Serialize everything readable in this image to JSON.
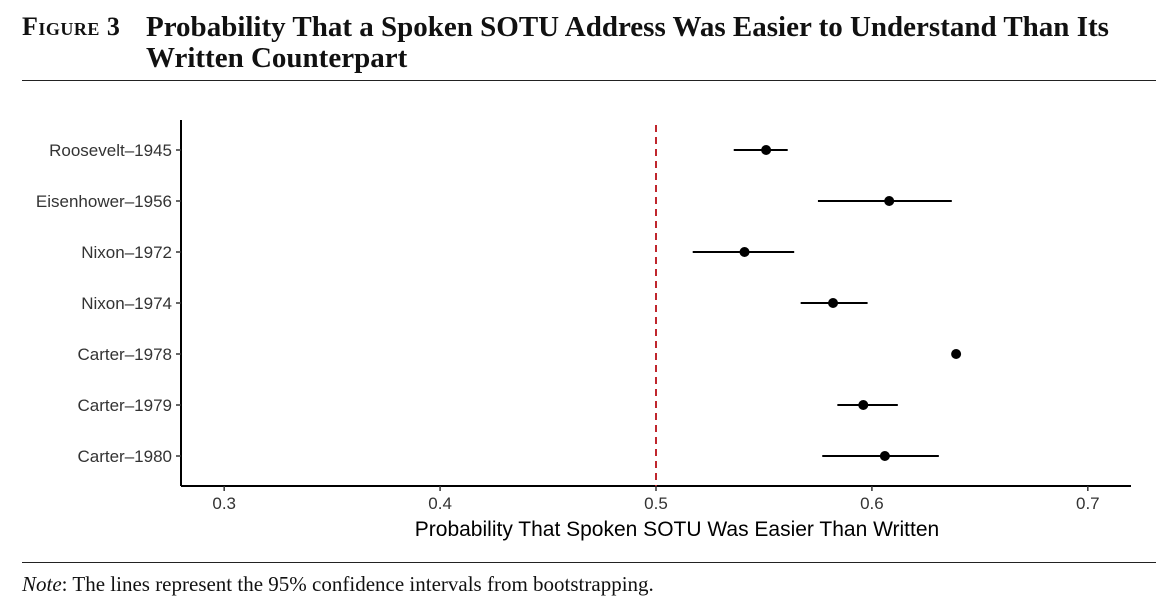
{
  "header": {
    "figure_label": "Figure 3",
    "title": "Probability That a Spoken SOTU Address Was Easier to Understand Than Its Written Counterpart"
  },
  "note": {
    "label": "Note",
    "text": ": The lines represent the 95% confidence intervals from bootstrapping."
  },
  "chart_data": {
    "type": "scatter",
    "subtype": "point-range (dot and whisker)",
    "categories": [
      "Roosevelt–1945",
      "Eisenhower–1956",
      "Nixon–1972",
      "Nixon–1974",
      "Carter–1978",
      "Carter–1979",
      "Carter–1980"
    ],
    "estimates": [
      0.551,
      0.608,
      0.541,
      0.582,
      0.639,
      0.596,
      0.606
    ],
    "ci_lower": [
      0.536,
      0.575,
      0.517,
      0.567,
      0.639,
      0.584,
      0.577
    ],
    "ci_upper": [
      0.561,
      0.637,
      0.564,
      0.598,
      0.639,
      0.612,
      0.631
    ],
    "xlabel": "Probability That Spoken SOTU Was Easier Than Written",
    "ylabel": "",
    "xlim": [
      0.28,
      0.72
    ],
    "xticks": [
      "0.3",
      "0.4",
      "0.5",
      "0.6",
      "0.7"
    ],
    "reference_line": {
      "x": 0.5,
      "color": "#c0262d",
      "style": "dashed"
    },
    "grid": false,
    "colors": {
      "points": "#000000",
      "axis": "#000000"
    }
  }
}
